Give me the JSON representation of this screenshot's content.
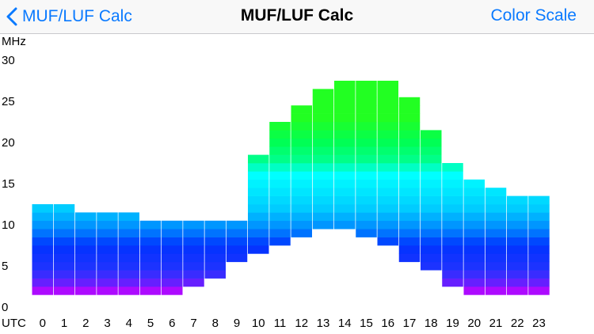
{
  "nav": {
    "back_label": "MUF/LUF Calc",
    "title": "MUF/LUF Calc",
    "right_label": "Color Scale",
    "accent_color": "#0a7aff",
    "back_icon": "chevron-left-icon"
  },
  "chart_data": {
    "type": "bar",
    "subtype": "floating-range",
    "ylabel": "MHz",
    "xlabel": "UTC",
    "ylim": [
      0,
      30
    ],
    "yticks": [
      0,
      5,
      10,
      15,
      20,
      25,
      30
    ],
    "categories": [
      "0",
      "1",
      "2",
      "3",
      "4",
      "5",
      "6",
      "7",
      "8",
      "9",
      "10",
      "11",
      "12",
      "13",
      "14",
      "15",
      "16",
      "17",
      "18",
      "19",
      "20",
      "21",
      "22",
      "23"
    ],
    "series": [
      {
        "name": "MUF",
        "values": [
          12.5,
          12.5,
          11.5,
          11.5,
          11.5,
          10.5,
          10.5,
          10.5,
          10.5,
          10.5,
          18.5,
          22.5,
          24.5,
          26.5,
          27.5,
          27.5,
          27.5,
          25.5,
          21.5,
          17.5,
          15.5,
          14.5,
          13.5,
          13.5
        ]
      },
      {
        "name": "LUF",
        "values": [
          1.5,
          1.5,
          1.5,
          1.5,
          1.5,
          1.5,
          1.5,
          2.5,
          3.5,
          5.5,
          6.5,
          7.5,
          8.5,
          9.5,
          9.5,
          8.5,
          7.5,
          5.5,
          4.5,
          2.5,
          1.5,
          1.5,
          1.5,
          1.5
        ]
      }
    ],
    "grid": false,
    "legend": "none"
  }
}
